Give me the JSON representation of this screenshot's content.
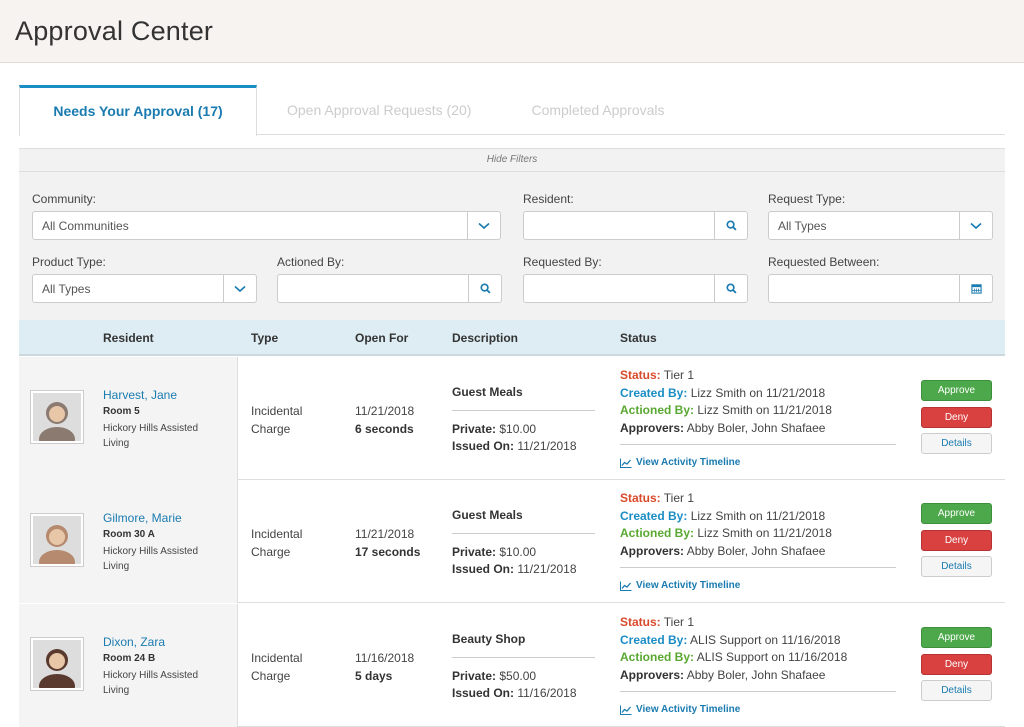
{
  "header": {
    "title": "Approval Center"
  },
  "tabs": [
    {
      "label": "Needs Your Approval  (17)",
      "active": true
    },
    {
      "label": "Open Approval Requests  (20)",
      "active": false
    },
    {
      "label": "Completed Approvals",
      "active": false
    }
  ],
  "filters": {
    "toggle_label": "Hide Filters",
    "community": {
      "label": "Community:",
      "value": "All Communities"
    },
    "resident": {
      "label": "Resident:",
      "value": ""
    },
    "request_type": {
      "label": "Request Type:",
      "value": "All Types"
    },
    "product_type": {
      "label": "Product Type:",
      "value": "All Types"
    },
    "actioned_by": {
      "label": "Actioned By:",
      "value": ""
    },
    "requested_by": {
      "label": "Requested By:",
      "value": ""
    },
    "requested_between": {
      "label": "Requested Between:",
      "value": ""
    }
  },
  "table": {
    "headers": {
      "resident": "Resident",
      "type": "Type",
      "open_for": "Open For",
      "description": "Description",
      "status": "Status"
    },
    "rows": [
      {
        "name": "Harvest, Jane",
        "room": "Room 5",
        "community": "Hickory Hills Assisted Living",
        "type": "Incidental Charge",
        "open_date": "11/21/2018",
        "open_duration": "6 seconds",
        "desc_title": "Guest Meals",
        "private_label": "Private:",
        "private_value": " $10.00",
        "issued_label": "Issued On:",
        "issued_value": " 11/21/2018",
        "status_label": "Status:",
        "status_value": " Tier 1",
        "created_label": "Created By:",
        "created_value": " Lizz Smith on 11/21/2018",
        "actioned_label": "Actioned By:",
        "actioned_value": " Lizz Smith on 11/21/2018",
        "approvers_label": "Approvers:",
        "approvers_value": " Abby Boler, John Shafaee",
        "timeline": "View Activity Timeline",
        "approve": "Approve",
        "deny": "Deny",
        "details": "Details",
        "avatar_color": "#8a7a70"
      },
      {
        "name": "Gilmore, Marie",
        "room": "Room 30 A",
        "community": "Hickory Hills Assisted Living",
        "type": "Incidental Charge",
        "open_date": "11/21/2018",
        "open_duration": "17 seconds",
        "desc_title": "Guest Meals",
        "private_label": "Private:",
        "private_value": " $10.00",
        "issued_label": "Issued On:",
        "issued_value": " 11/21/2018",
        "status_label": "Status:",
        "status_value": " Tier 1",
        "created_label": "Created By:",
        "created_value": " Lizz Smith on 11/21/2018",
        "actioned_label": "Actioned By:",
        "actioned_value": " Lizz Smith on 11/21/2018",
        "approvers_label": "Approvers:",
        "approvers_value": " Abby Boler, John Shafaee",
        "timeline": "View Activity Timeline",
        "approve": "Approve",
        "deny": "Deny",
        "details": "Details",
        "avatar_color": "#b58a6e"
      },
      {
        "name": "Dixon, Zara",
        "room": "Room 24 B",
        "community": "Hickory Hills Assisted Living",
        "type": "Incidental Charge",
        "open_date": "11/16/2018",
        "open_duration": "5 days",
        "desc_title": "Beauty Shop",
        "private_label": "Private:",
        "private_value": " $50.00",
        "issued_label": "Issued On:",
        "issued_value": " 11/16/2018",
        "status_label": "Status:",
        "status_value": " Tier 1",
        "created_label": "Created By:",
        "created_value": " ALIS Support on 11/16/2018",
        "actioned_label": "Actioned By:",
        "actioned_value": " ALIS Support on 11/16/2018",
        "approvers_label": "Approvers:",
        "approvers_value": " Abby Boler, John Shafaee",
        "timeline": "View Activity Timeline",
        "approve": "Approve",
        "deny": "Deny",
        "details": "Details",
        "avatar_color": "#5a3a2e"
      }
    ]
  },
  "colors": {
    "accent": "#1a8dc4",
    "approve": "#4ca84a",
    "deny": "#d94040",
    "status": "#d94a2b"
  }
}
